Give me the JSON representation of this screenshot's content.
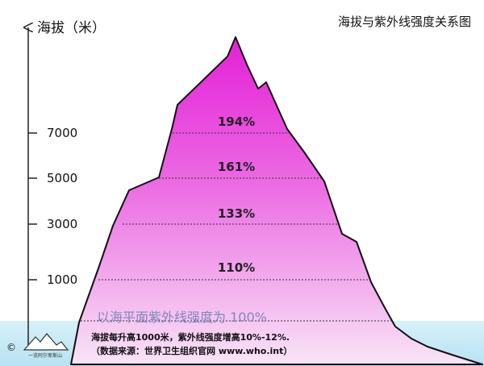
{
  "title": "海拔与紫外线强度关系图",
  "y_axis_label": "海拔（米）",
  "ticks": [
    {
      "label": "7000"
    },
    {
      "label": "5000"
    },
    {
      "label": "3000"
    },
    {
      "label": "1000"
    }
  ],
  "percentages": [
    "194%",
    "161%",
    "133%",
    "110%"
  ],
  "baseline_note": "以海平面紫外线强度为 100%",
  "footer": {
    "line1": "海拔每升高1000米，紫外线强度增高10%-12%.",
    "line2": "（数据来源：世界卫生组织官网 www.who.int）"
  },
  "copyright": "©",
  "logo_text": "一览阿尔卑斯山",
  "colors": {
    "mountain_top": "#e41fd6",
    "mountain_bottom": "#f6dcf3",
    "strip": "#bfe6f4",
    "baseline_text": "#7f86b8"
  }
}
